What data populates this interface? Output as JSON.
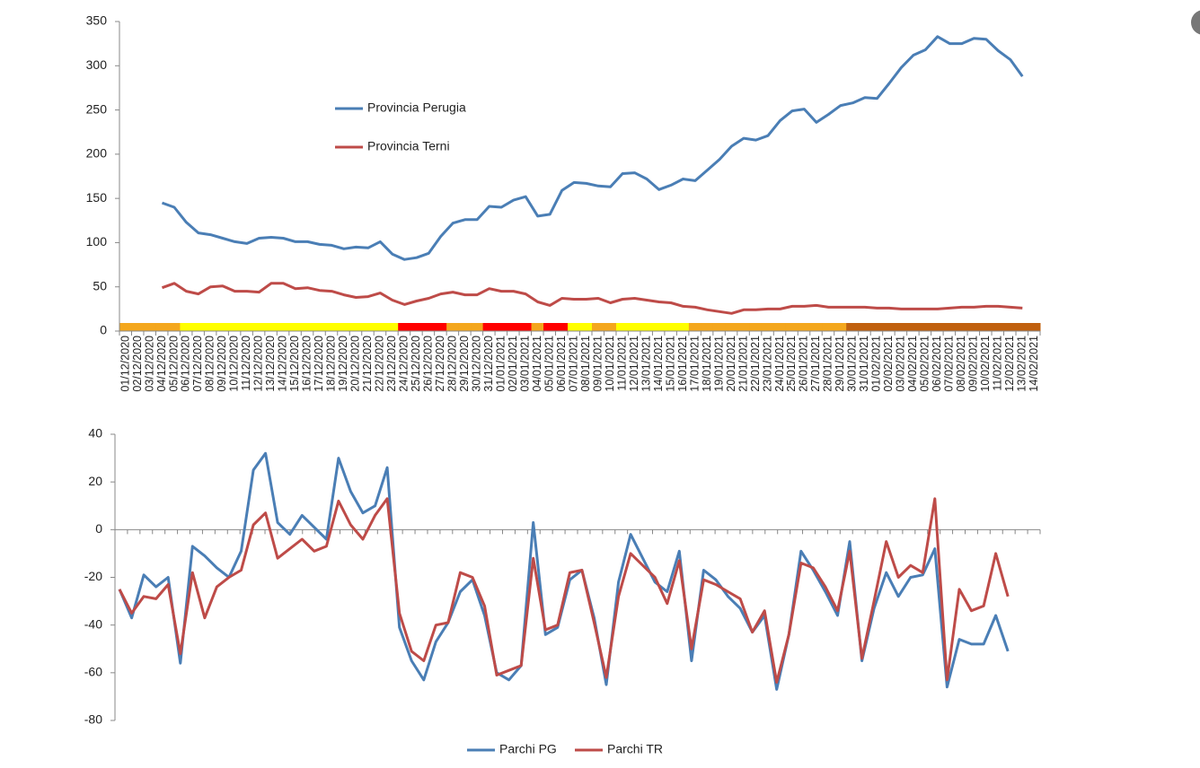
{
  "chart_data": [
    {
      "type": "line",
      "categories": [
        "01/12/2020",
        "02/12/2020",
        "03/12/2020",
        "04/12/2020",
        "05/12/2020",
        "06/12/2020",
        "07/12/2020",
        "08/12/2020",
        "09/12/2020",
        "10/12/2020",
        "11/12/2020",
        "12/12/2020",
        "13/12/2020",
        "14/12/2020",
        "15/12/2020",
        "16/12/2020",
        "17/12/2020",
        "18/12/2020",
        "19/12/2020",
        "20/12/2020",
        "21/12/2020",
        "22/12/2020",
        "23/12/2020",
        "24/12/2020",
        "25/12/2020",
        "26/12/2020",
        "27/12/2020",
        "28/12/2020",
        "29/12/2020",
        "30/12/2020",
        "31/12/2020",
        "01/01/2021",
        "02/01/2021",
        "03/01/2021",
        "04/01/2021",
        "05/01/2021",
        "06/01/2021",
        "07/01/2021",
        "08/01/2021",
        "09/01/2021",
        "10/01/2021",
        "11/01/2021",
        "12/01/2021",
        "13/01/2021",
        "14/01/2021",
        "15/01/2021",
        "16/01/2021",
        "17/01/2021",
        "18/01/2021",
        "19/01/2021",
        "20/01/2021",
        "21/01/2021",
        "22/01/2021",
        "23/01/2021",
        "24/01/2021",
        "25/01/2021",
        "26/01/2021",
        "27/01/2021",
        "28/01/2021",
        "29/01/2021",
        "30/01/2021",
        "31/01/2021",
        "01/02/2021",
        "02/02/2021",
        "03/02/2021",
        "04/02/2021",
        "05/02/2021",
        "06/02/2021",
        "07/02/2021",
        "08/02/2021",
        "09/02/2021",
        "10/02/2021",
        "11/02/2021",
        "12/02/2021",
        "13/02/2021",
        "14/02/2021"
      ],
      "series": [
        {
          "name": "Provincia Perugia",
          "color": "#4a7eb5",
          "values": [
            null,
            null,
            null,
            145,
            140,
            123,
            111,
            109,
            105,
            101,
            99,
            105,
            106,
            105,
            101,
            101,
            98,
            97,
            93,
            95,
            94,
            101,
            87,
            81,
            83,
            88,
            107,
            122,
            126,
            126,
            141,
            140,
            148,
            152,
            130,
            132,
            159,
            168,
            167,
            164,
            163,
            178,
            179,
            172,
            160,
            165,
            172,
            170,
            182,
            194,
            209,
            218,
            216,
            221,
            238,
            249,
            251,
            236,
            245,
            255,
            258,
            264,
            263,
            280,
            298,
            312,
            318,
            333,
            325,
            325,
            331,
            330,
            317,
            307,
            288,
            null
          ]
        },
        {
          "name": "Provincia Terni",
          "color": "#be4b48",
          "values": [
            null,
            null,
            null,
            49,
            54,
            45,
            42,
            50,
            51,
            45,
            45,
            44,
            54,
            54,
            48,
            49,
            46,
            45,
            41,
            38,
            39,
            43,
            35,
            30,
            34,
            37,
            42,
            44,
            41,
            41,
            48,
            45,
            45,
            42,
            33,
            29,
            37,
            36,
            36,
            37,
            32,
            36,
            37,
            35,
            33,
            32,
            28,
            27,
            24,
            22,
            20,
            24,
            24,
            25,
            25,
            28,
            28,
            29,
            27,
            27,
            27,
            27,
            26,
            26,
            25,
            25,
            25,
            25,
            26,
            27,
            27,
            28,
            28,
            27,
            26,
            null
          ]
        }
      ],
      "ylim": [
        0,
        350
      ],
      "yticks": [
        0,
        50,
        100,
        150,
        200,
        250,
        300,
        350
      ],
      "grid": false,
      "zone_colors": [
        "#f4a71d",
        "#f4a71d",
        "#f4a71d",
        "#f4a71d",
        "#f4a71d",
        "#ffff00",
        "#ffff00",
        "#ffff00",
        "#ffff00",
        "#ffff00",
        "#ffff00",
        "#ffff00",
        "#ffff00",
        "#ffff00",
        "#ffff00",
        "#ffff00",
        "#ffff00",
        "#ffff00",
        "#ffff00",
        "#ffff00",
        "#ffff00",
        "#ffff00",
        "#ffff00",
        "#ff0000",
        "#ff0000",
        "#ff0000",
        "#ff0000",
        "#f4a71d",
        "#f4a71d",
        "#f4a71d",
        "#ff0000",
        "#ff0000",
        "#ff0000",
        "#ff0000",
        "#f4a71d",
        "#ff0000",
        "#ff0000",
        "#ffff00",
        "#ffff00",
        "#f4a71d",
        "#f4a71d",
        "#ffff00",
        "#ffff00",
        "#ffff00",
        "#ffff00",
        "#ffff00",
        "#ffff00",
        "#f4a71d",
        "#f4a71d",
        "#f4a71d",
        "#f4a71d",
        "#f4a71d",
        "#f4a71d",
        "#f4a71d",
        "#f4a71d",
        "#f4a71d",
        "#f4a71d",
        "#f4a71d",
        "#f4a71d",
        "#f4a71d",
        "#c0600e",
        "#c0600e",
        "#c0600e",
        "#c0600e",
        "#c0600e",
        "#c0600e",
        "#c0600e",
        "#c0600e",
        "#c0600e",
        "#c0600e",
        "#c0600e",
        "#c0600e",
        "#c0600e",
        "#c0600e",
        "#c0600e",
        "#c0600e"
      ]
    },
    {
      "type": "line",
      "series": [
        {
          "name": "Parchi PG",
          "color": "#4a7eb5",
          "values": [
            -25,
            -37,
            -19,
            -24,
            -20,
            -56,
            -7,
            -11,
            -16,
            -20,
            -9,
            25,
            32,
            3,
            -2,
            6,
            1,
            -4,
            30,
            16,
            7,
            10,
            26,
            -41,
            -55,
            -63,
            -47,
            -39,
            -26,
            -21,
            -36,
            -60,
            -63,
            -57,
            3,
            -44,
            -41,
            -21,
            -17,
            -37,
            -65,
            -22,
            -2,
            -12,
            -22,
            -26,
            -9,
            -55,
            -17,
            -21,
            -28,
            -33,
            -43,
            -36,
            -67,
            -44,
            -9,
            -17,
            -26,
            -36,
            -5,
            -55,
            -33,
            -18,
            -28,
            -20,
            -19,
            -8,
            -66,
            -46,
            -48,
            -48,
            -36,
            -51
          ]
        },
        {
          "name": "Parchi TR",
          "color": "#be4b48",
          "values": [
            -25,
            -35,
            -28,
            -29,
            -23,
            -52,
            -18,
            -37,
            -24,
            -20,
            -17,
            2,
            7,
            -12,
            -8,
            -4,
            -9,
            -7,
            12,
            2,
            -4,
            6,
            13,
            -35,
            -51,
            -55,
            -40,
            -39,
            -18,
            -20,
            -32,
            -61,
            -59,
            -57,
            -12,
            -42,
            -40,
            -18,
            -17,
            -39,
            -62,
            -28,
            -10,
            -15,
            -20,
            -31,
            -13,
            -50,
            -21,
            -23,
            -26,
            -29,
            -43,
            -34,
            -64,
            -44,
            -14,
            -16,
            -24,
            -34,
            -9,
            -54,
            -30,
            -5,
            -20,
            -15,
            -18,
            13,
            -63,
            -25,
            -34,
            -32,
            -10,
            -28
          ]
        }
      ],
      "ylim": [
        -80,
        40
      ],
      "yticks": [
        -80,
        -60,
        -40,
        -20,
        0,
        20,
        40
      ],
      "grid": false
    }
  ]
}
